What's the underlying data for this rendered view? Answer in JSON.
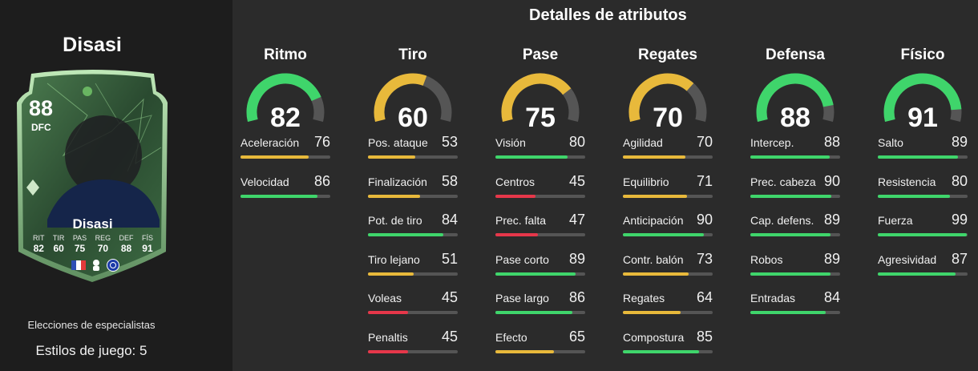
{
  "player": {
    "name": "Disasi",
    "rating": "88",
    "position": "DFC",
    "card_name": "Disasi",
    "card_stats": [
      {
        "label": "RIT",
        "value": "82"
      },
      {
        "label": "TIR",
        "value": "60"
      },
      {
        "label": "PAS",
        "value": "75"
      },
      {
        "label": "REG",
        "value": "70"
      },
      {
        "label": "DEF",
        "value": "88"
      },
      {
        "label": "FÍS",
        "value": "91"
      }
    ],
    "specialists_label": "Elecciones de especialistas",
    "playstyles_label": "Estilos de juego: 5"
  },
  "section_title": "Detalles de atributos",
  "colors": {
    "high": "#3fd56b",
    "mid": "#e8b93b",
    "low": "#e6374a",
    "track": "#555555"
  },
  "categories": [
    {
      "title": "Ritmo",
      "value": 82,
      "stats": [
        {
          "label": "Aceleración",
          "value": 76
        },
        {
          "label": "Velocidad",
          "value": 86
        }
      ]
    },
    {
      "title": "Tiro",
      "value": 60,
      "stats": [
        {
          "label": "Pos. ataque",
          "value": 53
        },
        {
          "label": "Finalización",
          "value": 58
        },
        {
          "label": "Pot. de tiro",
          "value": 84
        },
        {
          "label": "Tiro lejano",
          "value": 51
        },
        {
          "label": "Voleas",
          "value": 45
        },
        {
          "label": "Penaltis",
          "value": 45
        }
      ]
    },
    {
      "title": "Pase",
      "value": 75,
      "stats": [
        {
          "label": "Visión",
          "value": 80
        },
        {
          "label": "Centros",
          "value": 45
        },
        {
          "label": "Prec. falta",
          "value": 47
        },
        {
          "label": "Pase corto",
          "value": 89
        },
        {
          "label": "Pase largo",
          "value": 86
        },
        {
          "label": "Efecto",
          "value": 65
        }
      ]
    },
    {
      "title": "Regates",
      "value": 70,
      "stats": [
        {
          "label": "Agilidad",
          "value": 70
        },
        {
          "label": "Equilibrio",
          "value": 71
        },
        {
          "label": "Anticipación",
          "value": 90
        },
        {
          "label": "Contr. balón",
          "value": 73
        },
        {
          "label": "Regates",
          "value": 64
        },
        {
          "label": "Compostura",
          "value": 85
        }
      ]
    },
    {
      "title": "Defensa",
      "value": 88,
      "stats": [
        {
          "label": "Intercep.",
          "value": 88
        },
        {
          "label": "Prec. cabeza",
          "value": 90
        },
        {
          "label": "Cap. defens.",
          "value": 89
        },
        {
          "label": "Robos",
          "value": 89
        },
        {
          "label": "Entradas",
          "value": 84
        }
      ]
    },
    {
      "title": "Físico",
      "value": 91,
      "stats": [
        {
          "label": "Salto",
          "value": 89
        },
        {
          "label": "Resistencia",
          "value": 80
        },
        {
          "label": "Fuerza",
          "value": 99
        },
        {
          "label": "Agresividad",
          "value": 87
        }
      ]
    }
  ]
}
